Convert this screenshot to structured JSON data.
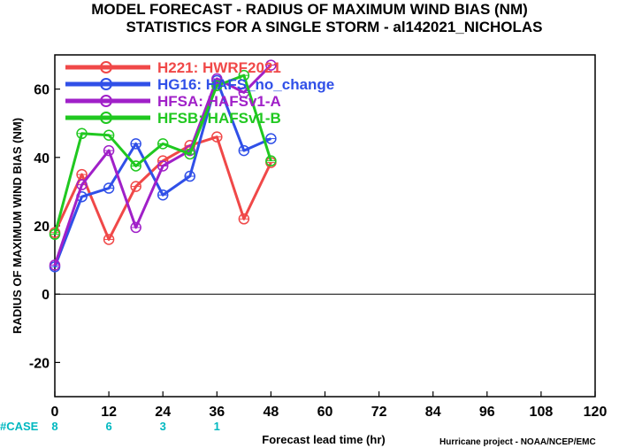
{
  "chart_data": {
    "type": "line",
    "title_lines": [
      "MODEL FORECAST - RADIUS OF MAXIMUM WIND BIAS (NM)",
      "STATISTICS FOR A SINGLE STORM - al142021_NICHOLAS"
    ],
    "xlabel": "Forecast lead time (hr)",
    "ylabel": "RADIUS OF MAXIMUM WIND BIAS (NM)",
    "xlim": [
      0,
      120
    ],
    "ylim": [
      -30,
      70
    ],
    "xticks": [
      0,
      12,
      24,
      36,
      48,
      60,
      72,
      84,
      96,
      108,
      120
    ],
    "yticks": [
      -20,
      0,
      20,
      40,
      60
    ],
    "zero_line": true,
    "legend_position": "top-left",
    "series": [
      {
        "name": "H221: HWRF2021",
        "color": "#f04848",
        "x": [
          0,
          6,
          12,
          18,
          24,
          30,
          36,
          42,
          48
        ],
        "y": [
          18,
          35,
          16,
          31.5,
          39,
          43.5,
          46,
          22,
          38.5
        ]
      },
      {
        "name": "HG16: HAFS_no_change",
        "color": "#3050e8",
        "x": [
          0,
          6,
          12,
          18,
          24,
          30,
          36,
          42,
          48
        ],
        "y": [
          8,
          28.5,
          31,
          44,
          29,
          34.5,
          62.5,
          42,
          45.5
        ]
      },
      {
        "name": "HFSA: HAFSv1-A",
        "color": "#a020c8",
        "x": [
          0,
          6,
          12,
          18,
          24,
          30,
          36,
          42,
          48
        ],
        "y": [
          8.5,
          32,
          42,
          19.5,
          37.5,
          42,
          63,
          59,
          67
        ]
      },
      {
        "name": "HFSB: HAFSv1-B",
        "color": "#20c820",
        "x": [
          0,
          6,
          12,
          18,
          24,
          30,
          36,
          42,
          48
        ],
        "y": [
          17.5,
          47,
          46.5,
          37.5,
          44,
          41,
          61,
          64,
          39
        ]
      }
    ],
    "case_counts": {
      "label": "#CASE",
      "x": [
        0,
        12,
        24,
        36
      ],
      "values": [
        "8",
        "6",
        "3",
        "1"
      ]
    },
    "credit": "Hurricane project - NOAA/NCEP/EMC"
  }
}
